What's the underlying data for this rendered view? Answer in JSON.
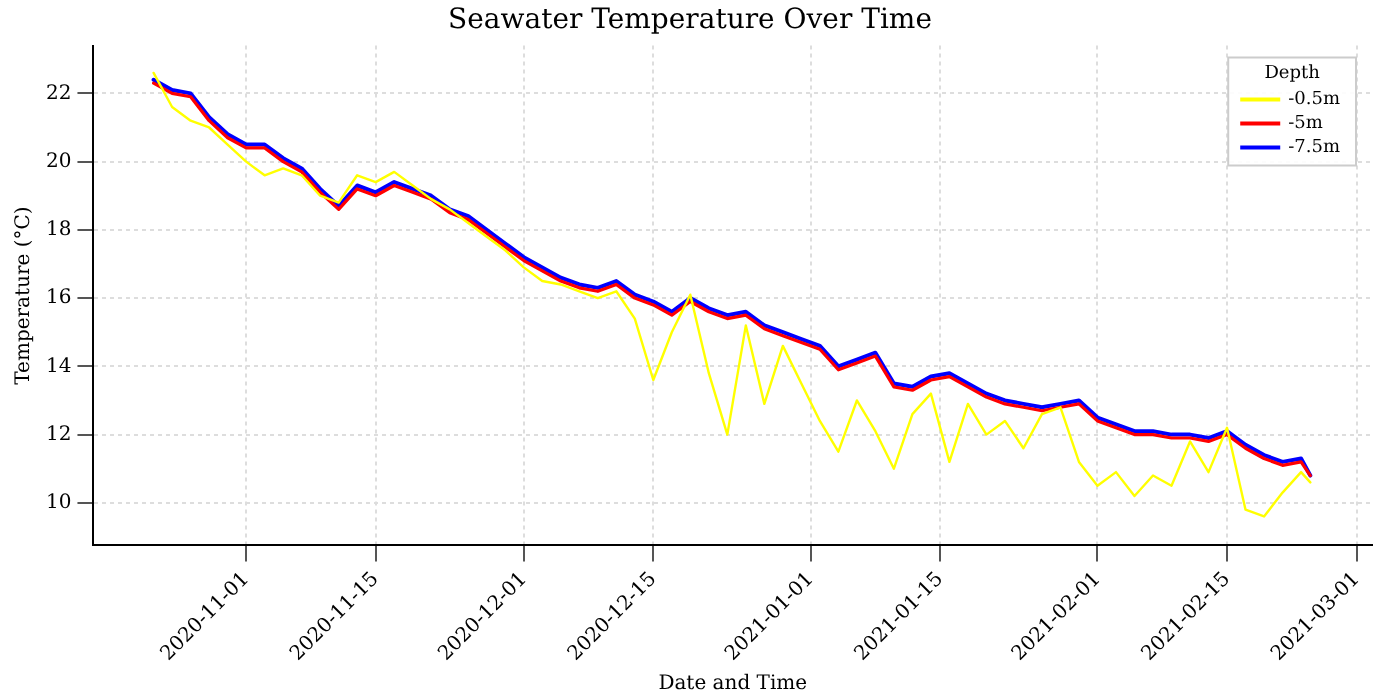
{
  "chart_data": {
    "type": "line",
    "title": "Seawater Temperature Over Time",
    "xlabel": "Date and Time",
    "ylabel": "Temperature (°C)",
    "legend_title": "Depth",
    "legend": "top right",
    "grid": true,
    "marker": "none",
    "line_style": "solid",
    "x": [
      "2020-10-22",
      "2020-10-24",
      "2020-10-26",
      "2020-10-28",
      "2020-10-30",
      "2020-11-01",
      "2020-11-03",
      "2020-11-05",
      "2020-11-07",
      "2020-11-09",
      "2020-11-11",
      "2020-11-13",
      "2020-11-15",
      "2020-11-17",
      "2020-11-19",
      "2020-11-21",
      "2020-11-23",
      "2020-11-25",
      "2020-11-27",
      "2020-11-29",
      "2020-12-01",
      "2020-12-03",
      "2020-12-05",
      "2020-12-07",
      "2020-12-09",
      "2020-12-11",
      "2020-12-13",
      "2020-12-15",
      "2020-12-17",
      "2020-12-19",
      "2020-12-21",
      "2020-12-23",
      "2020-12-25",
      "2020-12-27",
      "2020-12-29",
      "2020-12-31",
      "2021-01-02",
      "2021-01-04",
      "2021-01-06",
      "2021-01-08",
      "2021-01-10",
      "2021-01-12",
      "2021-01-14",
      "2021-01-16",
      "2021-01-18",
      "2021-01-20",
      "2021-01-22",
      "2021-01-24",
      "2021-01-26",
      "2021-01-28",
      "2021-01-30",
      "2021-02-01",
      "2021-02-03",
      "2021-02-05",
      "2021-02-07",
      "2021-02-09",
      "2021-02-11",
      "2021-02-13",
      "2021-02-15",
      "2021-02-17",
      "2021-02-19",
      "2021-02-21",
      "2021-02-23",
      "2021-02-24"
    ],
    "series": [
      {
        "name": "-0.5m",
        "color": "#ffff00",
        "values": [
          22.6,
          21.6,
          21.2,
          21.0,
          20.5,
          20.0,
          19.6,
          19.8,
          19.6,
          19.0,
          18.8,
          19.6,
          19.4,
          19.7,
          19.3,
          18.9,
          18.6,
          18.2,
          17.8,
          17.4,
          16.9,
          16.5,
          16.4,
          16.2,
          16.0,
          16.2,
          15.4,
          13.6,
          15.0,
          16.1,
          13.8,
          12.0,
          15.2,
          12.9,
          14.6,
          13.5,
          12.4,
          11.5,
          13.0,
          12.1,
          11.0,
          12.6,
          13.2,
          11.2,
          12.9,
          12.0,
          12.4,
          11.6,
          12.6,
          12.8,
          11.2,
          10.5,
          10.9,
          10.2,
          10.8,
          10.5,
          11.8,
          10.9,
          12.2,
          9.8,
          9.6,
          10.3,
          10.9,
          10.6
        ]
      },
      {
        "name": "-5m",
        "color": "#ff0000",
        "values": [
          22.3,
          22.0,
          21.9,
          21.2,
          20.7,
          20.4,
          20.4,
          20.0,
          19.7,
          19.1,
          18.6,
          19.2,
          19.0,
          19.3,
          19.1,
          18.9,
          18.5,
          18.3,
          17.9,
          17.5,
          17.1,
          16.8,
          16.5,
          16.3,
          16.2,
          16.4,
          16.0,
          15.8,
          15.5,
          15.9,
          15.6,
          15.4,
          15.5,
          15.1,
          14.9,
          14.7,
          14.5,
          13.9,
          14.1,
          14.3,
          13.4,
          13.3,
          13.6,
          13.7,
          13.4,
          13.1,
          12.9,
          12.8,
          12.7,
          12.8,
          12.9,
          12.4,
          12.2,
          12.0,
          12.0,
          11.9,
          11.9,
          11.8,
          12.0,
          11.6,
          11.3,
          11.1,
          11.2,
          10.8
        ]
      },
      {
        "name": "-7.5m",
        "color": "#0000ff",
        "values": [
          22.4,
          22.1,
          22.0,
          21.3,
          20.8,
          20.5,
          20.5,
          20.1,
          19.8,
          19.2,
          18.7,
          19.3,
          19.1,
          19.4,
          19.2,
          19.0,
          18.6,
          18.4,
          18.0,
          17.6,
          17.2,
          16.9,
          16.6,
          16.4,
          16.3,
          16.5,
          16.1,
          15.9,
          15.6,
          16.0,
          15.7,
          15.5,
          15.6,
          15.2,
          15.0,
          14.8,
          14.6,
          14.0,
          14.2,
          14.4,
          13.5,
          13.4,
          13.7,
          13.8,
          13.5,
          13.2,
          13.0,
          12.9,
          12.8,
          12.9,
          13.0,
          12.5,
          12.3,
          12.1,
          12.1,
          12.0,
          12.0,
          11.9,
          12.1,
          11.7,
          11.4,
          11.2,
          11.3,
          10.8
        ]
      }
    ],
    "xlim": [
      "2020-10-15T12:00",
      "2021-03-02T16:00"
    ],
    "xticks": [
      "2020-11-01",
      "2020-11-15",
      "2020-12-01",
      "2020-12-15",
      "2021-01-01",
      "2021-01-15",
      "2021-02-01",
      "2021-02-15",
      "2021-03-01"
    ],
    "ylim": [
      8.75,
      23.4
    ],
    "yticks": [
      10,
      12,
      14,
      16,
      18,
      20,
      22
    ]
  }
}
